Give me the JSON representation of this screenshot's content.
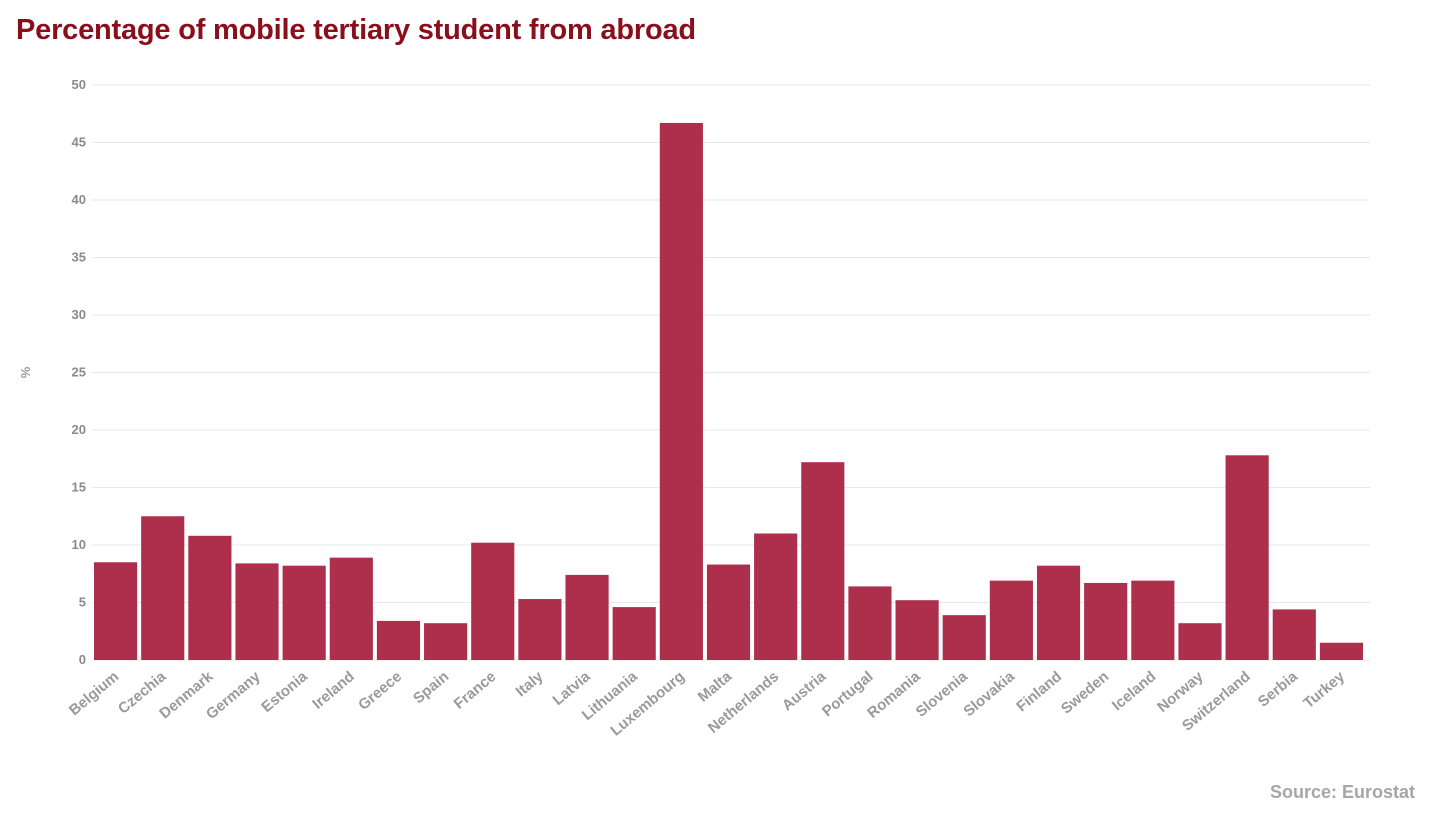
{
  "title": "Percentage of mobile tertiary student from abroad",
  "source": "Source: Eurostat",
  "chart_data": {
    "type": "bar",
    "title": "Percentage of mobile tertiary student from abroad",
    "xlabel": "",
    "ylabel": "%",
    "ylim": [
      0,
      50
    ],
    "yticks": [
      0,
      5,
      10,
      15,
      20,
      25,
      30,
      35,
      40,
      45,
      50
    ],
    "grid": true,
    "bar_color": "#ad2f4b",
    "categories": [
      "Belgium",
      "Czechia",
      "Denmark",
      "Germany",
      "Estonia",
      "Ireland",
      "Greece",
      "Spain",
      "France",
      "Italy",
      "Latvia",
      "Lithuania",
      "Luxembourg",
      "Malta",
      "Netherlands",
      "Austria",
      "Portugal",
      "Romania",
      "Slovenia",
      "Slovakia",
      "Finland",
      "Sweden",
      "Iceland",
      "Norway",
      "Switzerland",
      "Serbia",
      "Turkey"
    ],
    "values": [
      8.5,
      12.5,
      10.8,
      8.4,
      8.2,
      8.9,
      3.4,
      3.2,
      10.2,
      5.3,
      7.4,
      4.6,
      46.7,
      8.3,
      11.0,
      17.2,
      6.4,
      5.2,
      3.9,
      6.9,
      8.2,
      6.7,
      6.9,
      3.2,
      17.8,
      4.4,
      1.5
    ]
  }
}
